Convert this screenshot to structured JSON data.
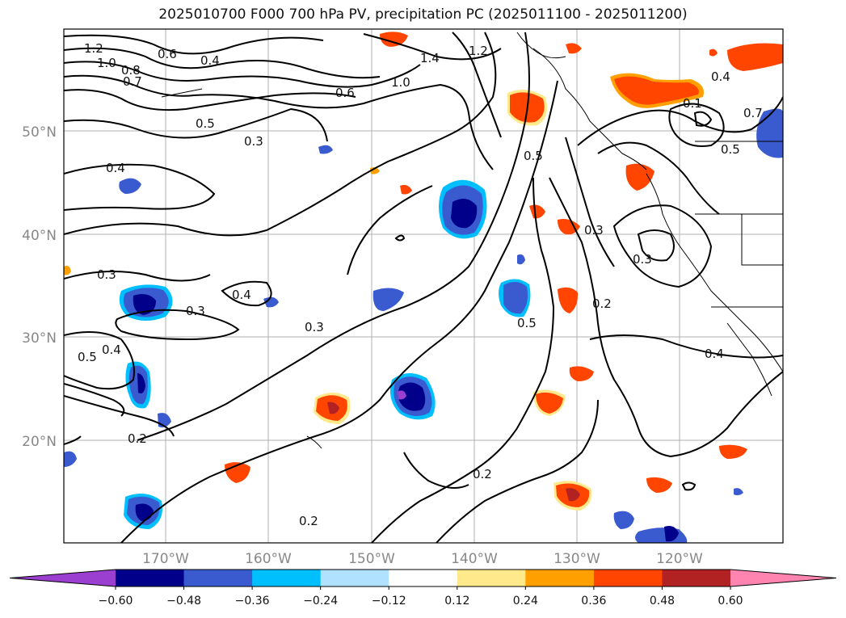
{
  "title": "2025010700 F000 700 hPa PV, precipitation PC (2025011100 - 2025011200)",
  "map": {
    "lon_labels": [
      "170°W",
      "160°W",
      "150°W",
      "140°W",
      "130°W",
      "120°W"
    ],
    "lat_labels": [
      "50°N",
      "40°N",
      "30°N",
      "20°N"
    ],
    "contour_labels": [
      "1.2",
      "1.0",
      "0.8",
      "0.7",
      "0.6",
      "0.4",
      "0.5",
      "0.6",
      "1.0",
      "1.4",
      "1.2",
      "0.3",
      "0.4",
      "0.3",
      "0.4",
      "0.3",
      "0.3",
      "0.5",
      "0.4",
      "0.2",
      "0.3",
      "0.5",
      "0.3",
      "0.2",
      "0.2",
      "0.2",
      "0.4",
      "0.5",
      "0.4",
      "0.1",
      "0.7",
      "0.5"
    ],
    "colors": {
      "neg_extreme": "#9a3fd0",
      "neg_0_60": "#00008b",
      "neg_0_48": "#3a5bd0",
      "neg_0_36": "#00bfff",
      "neg_0_24": "#b0e2ff",
      "pos_0_24": "#ffe98a",
      "pos_0_36": "#ffa000",
      "pos_0_48": "#ff4500",
      "pos_0_60": "#b22222",
      "pos_extreme": "#ff85b0"
    }
  },
  "colorbar": {
    "ticks": [
      "−0.60",
      "−0.48",
      "−0.36",
      "−0.24",
      "−0.12",
      "0.12",
      "0.24",
      "0.36",
      "0.48",
      "0.60"
    ],
    "bins": [
      {
        "range": "< -0.60",
        "color": "#9a3fd0"
      },
      {
        "range": "-0.60 to -0.48",
        "color": "#00008b"
      },
      {
        "range": "-0.48 to -0.36",
        "color": "#3a5bd0"
      },
      {
        "range": "-0.36 to -0.24",
        "color": "#00bfff"
      },
      {
        "range": "-0.24 to -0.12",
        "color": "#b0e2ff"
      },
      {
        "range": "-0.12 to 0.12",
        "color": "#ffffff"
      },
      {
        "range": "0.12 to 0.24",
        "color": "#ffe98a"
      },
      {
        "range": "0.24 to 0.36",
        "color": "#ffa000"
      },
      {
        "range": "0.36 to 0.48",
        "color": "#ff4500"
      },
      {
        "range": "0.48 to 0.60",
        "color": "#b22222"
      },
      {
        "range": "> 0.60",
        "color": "#ff85b0"
      }
    ]
  }
}
